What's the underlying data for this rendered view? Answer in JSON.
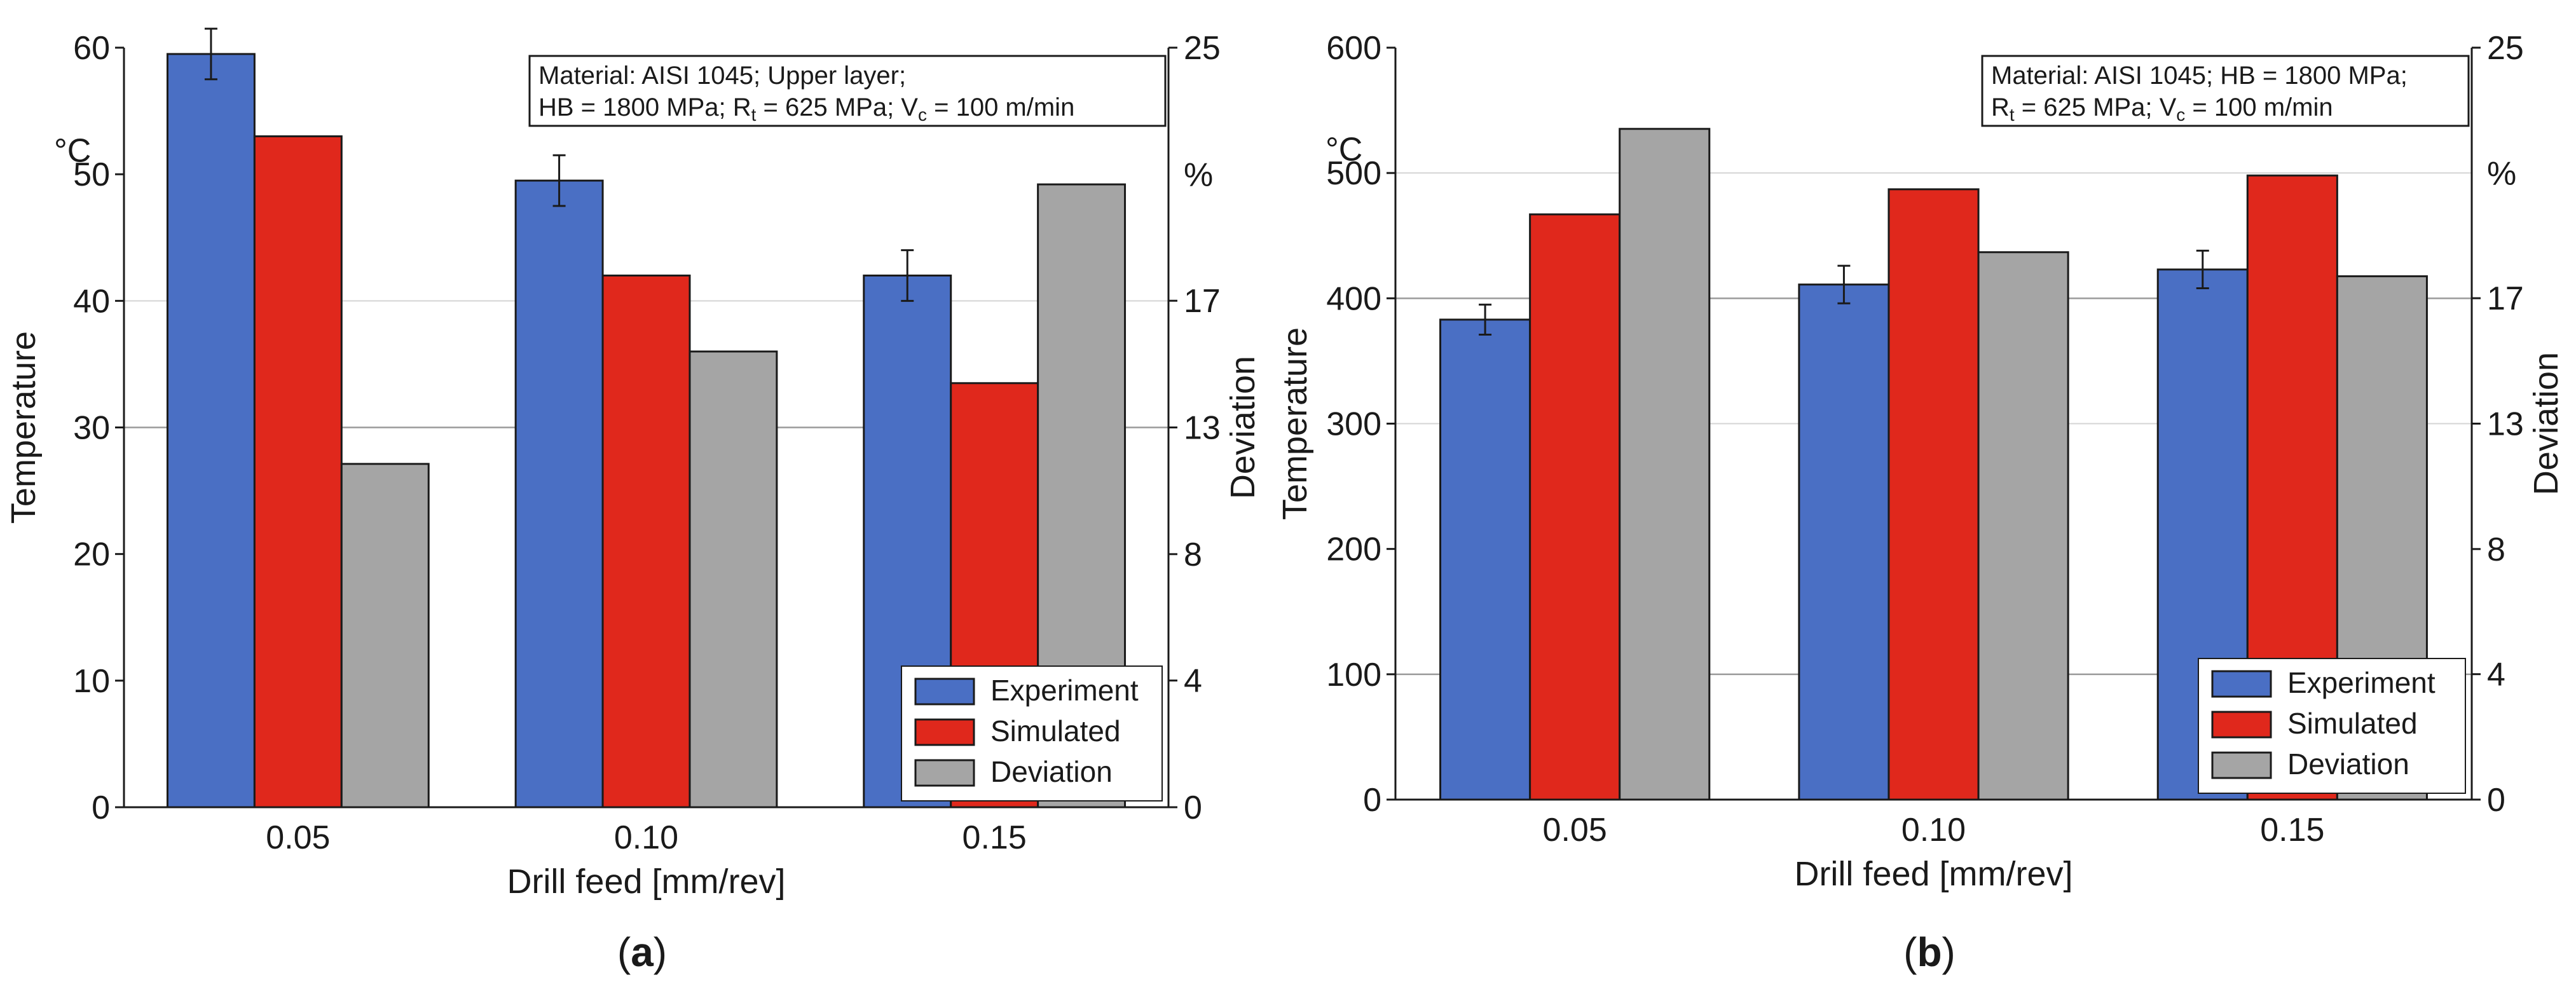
{
  "colors": {
    "experiment": "#4a6fc4",
    "simulated": "#e0281c",
    "deviation": "#a5a5a5",
    "axis": "#1a1a1a",
    "grid": "#9a9a9a",
    "grid_light": "#d4d4d4"
  },
  "chart_data": [
    {
      "type": "bar",
      "panel_label": "a",
      "categories": [
        "0.05",
        "0.10",
        "0.15"
      ],
      "series": [
        {
          "name": "Experiment",
          "axis": "left",
          "values": [
            59.5,
            49.5,
            42.0
          ],
          "error": [
            2.0,
            2.0,
            2.0
          ]
        },
        {
          "name": "Simulated",
          "axis": "left",
          "values": [
            53.0,
            42.0,
            33.5
          ]
        },
        {
          "name": "Deviation",
          "axis": "right",
          "values": [
            11.3,
            15.0,
            20.5
          ]
        }
      ],
      "xlabel": "Drill feed [mm/rev]",
      "ylabel": "Temperature",
      "ylabel_unit": "°C",
      "ylim": [
        0,
        60
      ],
      "yticks": [
        0,
        10,
        20,
        30,
        40,
        50,
        60
      ],
      "y2label": "Deviation",
      "y2label_unit": "%",
      "y2lim": [
        0,
        25
      ],
      "y2ticks": [
        {
          "value": 0,
          "label": "0"
        },
        {
          "value": 4.17,
          "label": "4"
        },
        {
          "value": 8.33,
          "label": "8"
        },
        {
          "value": 12.5,
          "label": "13"
        },
        {
          "value": 16.67,
          "label": "17"
        },
        {
          "value": 25,
          "label": "25"
        }
      ],
      "gridlines": [
        {
          "value": 30,
          "style": "dark"
        },
        {
          "value": 40,
          "style": "light"
        }
      ],
      "annotation_lines": [
        [
          {
            "t": "Material: AISI 1045; Upper layer;"
          }
        ],
        [
          {
            "t": "HB = 1800 MPa; R"
          },
          {
            "t": "t",
            "sub": true
          },
          {
            "t": " = 625 MPa; V"
          },
          {
            "t": "c",
            "sub": true
          },
          {
            "t": " = 100 m/min"
          }
        ]
      ],
      "legend_position": "bottom-right"
    },
    {
      "type": "bar",
      "panel_label": "b",
      "categories": [
        "0.05",
        "0.10",
        "0.15"
      ],
      "series": [
        {
          "name": "Experiment",
          "axis": "left",
          "values": [
            383,
            411,
            423
          ],
          "error": [
            12,
            15,
            15
          ]
        },
        {
          "name": "Simulated",
          "axis": "left",
          "values": [
            467,
            487,
            498
          ]
        },
        {
          "name": "Deviation",
          "axis": "right",
          "values": [
            22.3,
            18.2,
            17.4
          ]
        }
      ],
      "xlabel": "Drill feed [mm/rev]",
      "ylabel": "Temperature",
      "ylabel_unit": "°C",
      "ylim": [
        0,
        600
      ],
      "yticks": [
        0,
        100,
        200,
        300,
        400,
        500,
        600
      ],
      "y2label": "Deviation",
      "y2label_unit": "%",
      "y2lim": [
        0,
        25
      ],
      "y2ticks": [
        {
          "value": 0,
          "label": "0"
        },
        {
          "value": 4.17,
          "label": "4"
        },
        {
          "value": 8.33,
          "label": "8"
        },
        {
          "value": 12.5,
          "label": "13"
        },
        {
          "value": 16.67,
          "label": "17"
        },
        {
          "value": 25,
          "label": "25"
        }
      ],
      "gridlines": [
        {
          "value": 100,
          "style": "dark"
        },
        {
          "value": 300,
          "style": "light"
        },
        {
          "value": 400,
          "style": "dark"
        },
        {
          "value": 500,
          "style": "light"
        }
      ],
      "annotation_lines": [
        [
          {
            "t": "Material: AISI 1045; HB = 1800 MPa;"
          }
        ],
        [
          {
            "t": "R"
          },
          {
            "t": "t",
            "sub": true
          },
          {
            "t": " = 625 MPa; V"
          },
          {
            "t": "c",
            "sub": true
          },
          {
            "t": " = 100 m/min"
          }
        ]
      ],
      "legend_position": "bottom-right"
    }
  ]
}
